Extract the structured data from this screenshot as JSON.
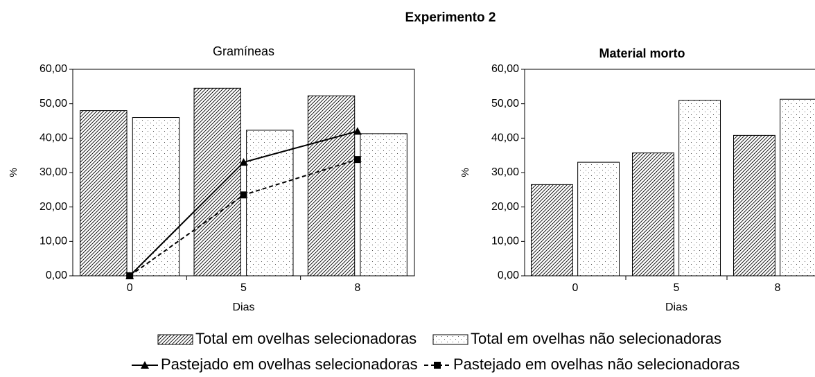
{
  "title": "Experimento 2",
  "chart_data": [
    {
      "type": "bar",
      "title": "Gramíneas",
      "xlabel": "Dias",
      "ylabel": "%",
      "categories": [
        "0",
        "5",
        "8"
      ],
      "ylim": [
        0,
        60
      ],
      "yticks": [
        {
          "value": 0,
          "label": "0,00"
        },
        {
          "value": 10,
          "label": "10,00"
        },
        {
          "value": 20,
          "label": "20,00"
        },
        {
          "value": 30,
          "label": "30,00"
        },
        {
          "value": 40,
          "label": "40,00"
        },
        {
          "value": 50,
          "label": "50,00"
        },
        {
          "value": 60,
          "label": "60,00"
        }
      ],
      "series": [
        {
          "name": "Total em ovelhas selecionadoras",
          "type": "bar",
          "pattern": "hatch",
          "color": "#000000",
          "values": [
            48.0,
            54.5,
            52.3
          ]
        },
        {
          "name": "Total em ovelhas não selecionadoras",
          "type": "bar",
          "pattern": "dots",
          "color": "#000000",
          "values": [
            46.0,
            42.3,
            41.3
          ]
        },
        {
          "name": "Pastejado em ovelhas selecionadoras",
          "type": "line",
          "marker": "triangle",
          "dash": "solid",
          "color": "#000000",
          "values": [
            0,
            33.0,
            42.0
          ]
        },
        {
          "name": "Pastejado em ovelhas não selecionadoras",
          "type": "line",
          "marker": "square",
          "dash": "dashed",
          "color": "#000000",
          "values": [
            0,
            23.5,
            33.8
          ]
        }
      ]
    },
    {
      "type": "bar",
      "title": "Material morto",
      "xlabel": "Dias",
      "ylabel": "%",
      "categories": [
        "0",
        "5",
        "8"
      ],
      "ylim": [
        0,
        60
      ],
      "yticks": [
        {
          "value": 0,
          "label": "0,00"
        },
        {
          "value": 10,
          "label": "10,00"
        },
        {
          "value": 20,
          "label": "20,00"
        },
        {
          "value": 30,
          "label": "30,00"
        },
        {
          "value": 40,
          "label": "40,00"
        },
        {
          "value": 50,
          "label": "50,00"
        },
        {
          "value": 60,
          "label": "60,00"
        }
      ],
      "series": [
        {
          "type": "bar",
          "pattern": "hatch",
          "color": "#000000",
          "values": [
            26.5,
            35.7,
            40.8
          ]
        },
        {
          "type": "bar",
          "pattern": "dots",
          "color": "#000000",
          "values": [
            33.0,
            51.0,
            51.3
          ]
        }
      ]
    }
  ]
}
